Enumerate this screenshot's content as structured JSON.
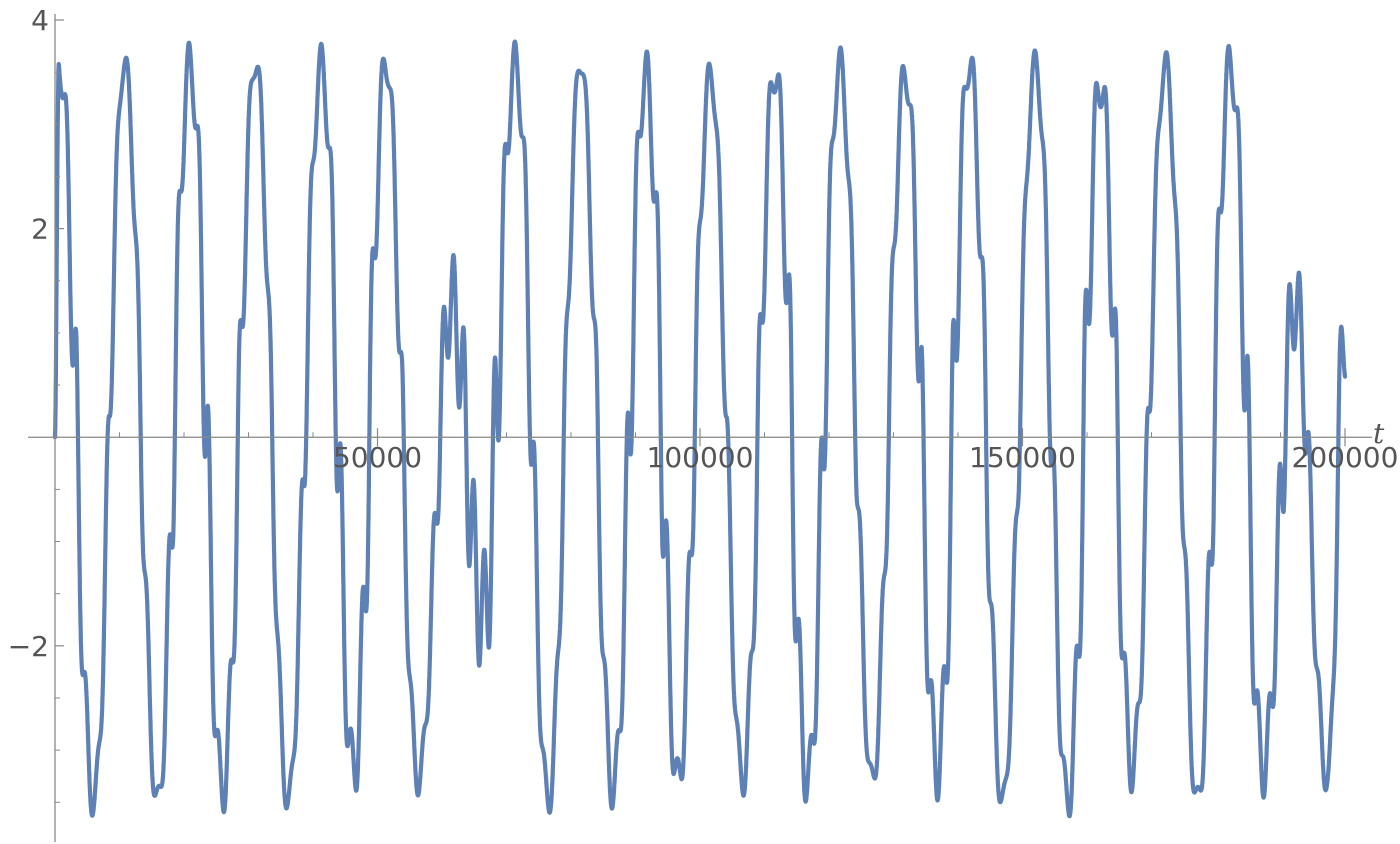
{
  "chart_data": {
    "type": "line",
    "xlabel": "t",
    "ylabel": "",
    "xlim": [
      0,
      200000
    ],
    "ylim": [
      -3.9,
      4.0
    ],
    "x_ticks": [
      {
        "value": 50000,
        "label": "50000"
      },
      {
        "value": 100000,
        "label": "100000"
      },
      {
        "value": 150000,
        "label": "150000"
      },
      {
        "value": 200000,
        "label": "200000"
      }
    ],
    "y_ticks": [
      {
        "value": -2,
        "label": "−2"
      },
      {
        "value": 2,
        "label": "2"
      },
      {
        "value": 4,
        "label": "4"
      }
    ],
    "grid": false,
    "series": [
      {
        "color": "#5e81b5",
        "x_range": [
          0,
          200000
        ],
        "peak_times": [
          600,
          10800,
          20900,
          31100,
          41300,
          51300,
          61400,
          71400,
          81500,
          91600,
          101600,
          111600,
          121700,
          131800,
          141800,
          152000,
          162100,
          172200,
          182200,
          192300
        ],
        "peak_values": [
          3.6,
          3.6,
          3.6,
          3.6,
          3.6,
          3.6,
          1.3,
          3.6,
          3.6,
          3.5,
          3.5,
          3.5,
          3.6,
          3.5,
          3.6,
          3.6,
          3.4,
          3.6,
          3.6,
          1.3
        ],
        "trough_times": [
          6000,
          15900,
          26000,
          36100,
          46300,
          56300,
          66400,
          76500,
          86500,
          96600,
          106600,
          116700,
          126700,
          136800,
          146900,
          157000,
          167000,
          177100,
          187300,
          197300
        ],
        "trough_values": [
          -3.5,
          -3.5,
          -3.4,
          -3.5,
          -3.2,
          -3.3,
          -1.7,
          -3.5,
          -3.4,
          -3.3,
          -3.3,
          -3.3,
          -3.3,
          -3.2,
          -3.5,
          -3.5,
          -3.2,
          -3.5,
          -3.2,
          -3.3
        ],
        "fast_period": 1580,
        "end_value": 1.1
      }
    ]
  }
}
